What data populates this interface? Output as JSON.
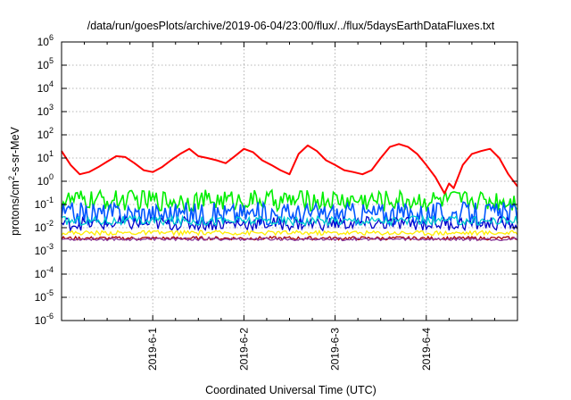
{
  "chart_data": {
    "type": "line",
    "title": "/data/run/goesPlots/archive/2019-06-04/23:00/flux/../flux/5daysEarthDataFluxes.txt",
    "xlabel": "Coordinated Universal Time (UTC)",
    "ylabel": "protons/cm²-s-sr-MeV",
    "y_scale": "log",
    "ylim": [
      1e-06,
      1000000.0
    ],
    "xlim": [
      0,
      5
    ],
    "grid": true,
    "x_ticks": [
      {
        "value": 1,
        "label": "2019-6-1"
      },
      {
        "value": 2,
        "label": "2019-6-2"
      },
      {
        "value": 3,
        "label": "2019-6-3"
      },
      {
        "value": 4,
        "label": "2019-6-4"
      }
    ],
    "y_ticks": [
      {
        "value": 1000000.0,
        "base": "10",
        "exp": "6"
      },
      {
        "value": 100000.0,
        "base": "10",
        "exp": "5"
      },
      {
        "value": 10000.0,
        "base": "10",
        "exp": "4"
      },
      {
        "value": 1000.0,
        "base": "10",
        "exp": "3"
      },
      {
        "value": 100.0,
        "base": "10",
        "exp": "2"
      },
      {
        "value": 10.0,
        "base": "10",
        "exp": "1"
      },
      {
        "value": 1.0,
        "base": "10",
        "exp": "0"
      },
      {
        "value": 0.1,
        "base": "10",
        "exp": "-1"
      },
      {
        "value": 0.01,
        "base": "10",
        "exp": "-2"
      },
      {
        "value": 0.001,
        "base": "10",
        "exp": "-3"
      },
      {
        "value": 0.0001,
        "base": "10",
        "exp": "-4"
      },
      {
        "value": 1e-05,
        "base": "10",
        "exp": "-5"
      },
      {
        "value": 1e-06,
        "base": "10",
        "exp": "-6"
      }
    ],
    "series": [
      {
        "color": "#ff0000",
        "x": [
          0,
          0.1,
          0.2,
          0.3,
          0.4,
          0.5,
          0.6,
          0.7,
          0.8,
          0.9,
          1.0,
          1.1,
          1.2,
          1.3,
          1.4,
          1.5,
          1.6,
          1.7,
          1.8,
          1.9,
          2.0,
          2.1,
          2.2,
          2.3,
          2.4,
          2.5,
          2.6,
          2.7,
          2.8,
          2.9,
          3.0,
          3.1,
          3.2,
          3.3,
          3.4,
          3.5,
          3.6,
          3.7,
          3.8,
          3.9,
          4.0,
          4.1,
          4.2,
          4.25,
          4.3,
          4.4,
          4.5,
          4.6,
          4.7,
          4.8,
          4.9,
          5.0
        ],
        "y": [
          20,
          5,
          2,
          2.5,
          4,
          7,
          12,
          11,
          6,
          3,
          2.5,
          4,
          8,
          15,
          25,
          12,
          10,
          8,
          6,
          12,
          25,
          18,
          8,
          5,
          3,
          2,
          15,
          35,
          20,
          8,
          5,
          3,
          2.5,
          2,
          3,
          10,
          30,
          40,
          30,
          15,
          5,
          1.5,
          0.3,
          0.8,
          0.5,
          5,
          15,
          20,
          25,
          10,
          2,
          0.6
        ]
      },
      {
        "color": "#00ee00",
        "level": 0.15
      },
      {
        "color": "#0055ff",
        "level": 0.04
      },
      {
        "color": "#0000cc",
        "level": 0.015
      },
      {
        "color": "#00d0d0",
        "level": 0.02
      },
      {
        "color": "#ffee00",
        "level": 0.006
      },
      {
        "color": "#aa0000",
        "level": 0.0035
      },
      {
        "color": "#8a3a9a",
        "level": 0.0032
      }
    ]
  }
}
